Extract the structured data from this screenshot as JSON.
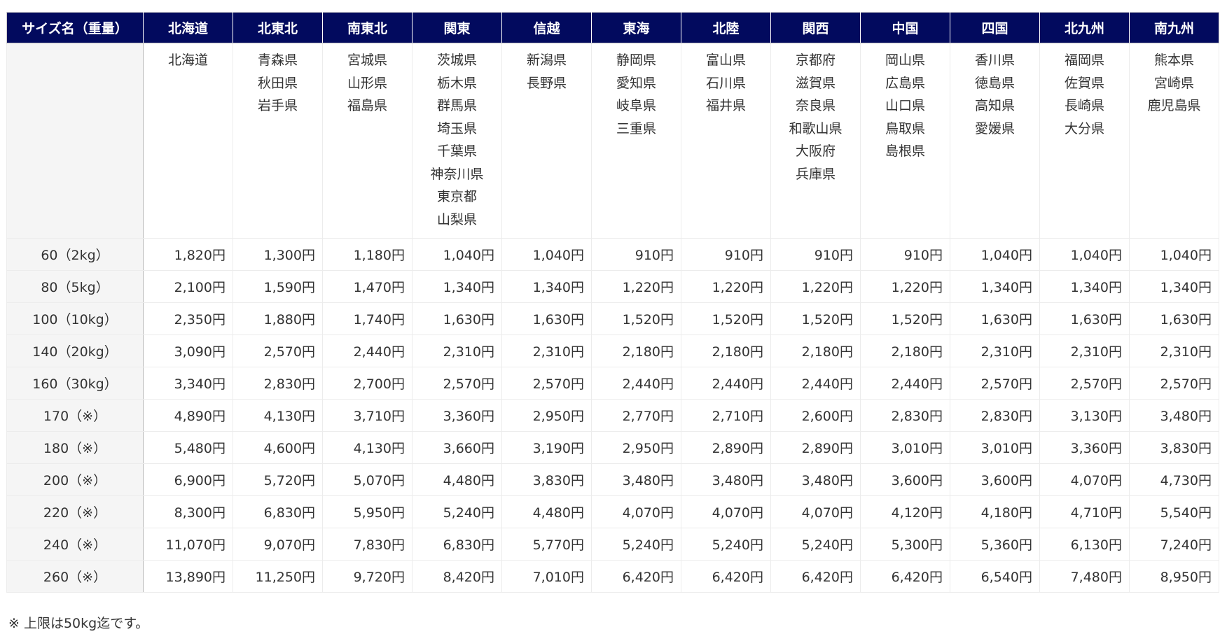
{
  "table": {
    "corner_header": "サイズ名（重量）",
    "regions": [
      {
        "name": "北海道",
        "prefectures": [
          "北海道"
        ]
      },
      {
        "name": "北東北",
        "prefectures": [
          "青森県",
          "秋田県",
          "岩手県"
        ]
      },
      {
        "name": "南東北",
        "prefectures": [
          "宮城県",
          "山形県",
          "福島県"
        ]
      },
      {
        "name": "関東",
        "prefectures": [
          "茨城県",
          "栃木県",
          "群馬県",
          "埼玉県",
          "千葉県",
          "神奈川県",
          "東京都",
          "山梨県"
        ]
      },
      {
        "name": "信越",
        "prefectures": [
          "新潟県",
          "長野県"
        ]
      },
      {
        "name": "東海",
        "prefectures": [
          "静岡県",
          "愛知県",
          "岐阜県",
          "三重県"
        ]
      },
      {
        "name": "北陸",
        "prefectures": [
          "富山県",
          "石川県",
          "福井県"
        ]
      },
      {
        "name": "関西",
        "prefectures": [
          "京都府",
          "滋賀県",
          "奈良県",
          "和歌山県",
          "大阪府",
          "兵庫県"
        ]
      },
      {
        "name": "中国",
        "prefectures": [
          "岡山県",
          "広島県",
          "山口県",
          "鳥取県",
          "島根県"
        ]
      },
      {
        "name": "四国",
        "prefectures": [
          "香川県",
          "徳島県",
          "高知県",
          "愛媛県"
        ]
      },
      {
        "name": "北九州",
        "prefectures": [
          "福岡県",
          "佐賀県",
          "長崎県",
          "大分県"
        ]
      },
      {
        "name": "南九州",
        "prefectures": [
          "熊本県",
          "宮崎県",
          "鹿児島県"
        ]
      }
    ],
    "rows": [
      {
        "size": "60（2kg）",
        "prices": [
          "1,820円",
          "1,300円",
          "1,180円",
          "1,040円",
          "1,040円",
          "910円",
          "910円",
          "910円",
          "910円",
          "1,040円",
          "1,040円",
          "1,040円"
        ]
      },
      {
        "size": "80（5kg）",
        "prices": [
          "2,100円",
          "1,590円",
          "1,470円",
          "1,340円",
          "1,340円",
          "1,220円",
          "1,220円",
          "1,220円",
          "1,220円",
          "1,340円",
          "1,340円",
          "1,340円"
        ]
      },
      {
        "size": "100（10kg）",
        "prices": [
          "2,350円",
          "1,880円",
          "1,740円",
          "1,630円",
          "1,630円",
          "1,520円",
          "1,520円",
          "1,520円",
          "1,520円",
          "1,630円",
          "1,630円",
          "1,630円"
        ]
      },
      {
        "size": "140（20kg）",
        "prices": [
          "3,090円",
          "2,570円",
          "2,440円",
          "2,310円",
          "2,310円",
          "2,180円",
          "2,180円",
          "2,180円",
          "2,180円",
          "2,310円",
          "2,310円",
          "2,310円"
        ]
      },
      {
        "size": "160（30kg）",
        "prices": [
          "3,340円",
          "2,830円",
          "2,700円",
          "2,570円",
          "2,570円",
          "2,440円",
          "2,440円",
          "2,440円",
          "2,440円",
          "2,570円",
          "2,570円",
          "2,570円"
        ]
      },
      {
        "size": "170（※）",
        "prices": [
          "4,890円",
          "4,130円",
          "3,710円",
          "3,360円",
          "2,950円",
          "2,770円",
          "2,710円",
          "2,600円",
          "2,830円",
          "2,830円",
          "3,130円",
          "3,480円"
        ]
      },
      {
        "size": "180（※）",
        "prices": [
          "5,480円",
          "4,600円",
          "4,130円",
          "3,660円",
          "3,190円",
          "2,950円",
          "2,890円",
          "2,890円",
          "3,010円",
          "3,010円",
          "3,360円",
          "3,830円"
        ]
      },
      {
        "size": "200（※）",
        "prices": [
          "6,900円",
          "5,720円",
          "5,070円",
          "4,480円",
          "3,830円",
          "3,480円",
          "3,480円",
          "3,480円",
          "3,600円",
          "3,600円",
          "4,070円",
          "4,730円"
        ]
      },
      {
        "size": "220（※）",
        "prices": [
          "8,300円",
          "6,830円",
          "5,950円",
          "5,240円",
          "4,480円",
          "4,070円",
          "4,070円",
          "4,070円",
          "4,120円",
          "4,180円",
          "4,710円",
          "5,540円"
        ]
      },
      {
        "size": "240（※）",
        "prices": [
          "11,070円",
          "9,070円",
          "7,830円",
          "6,830円",
          "5,770円",
          "5,240円",
          "5,240円",
          "5,240円",
          "5,300円",
          "5,360円",
          "6,130円",
          "7,240円"
        ]
      },
      {
        "size": "260（※）",
        "prices": [
          "13,890円",
          "11,250円",
          "9,720円",
          "8,420円",
          "7,010円",
          "6,420円",
          "6,420円",
          "6,420円",
          "6,420円",
          "6,540円",
          "7,480円",
          "8,950円"
        ]
      }
    ]
  },
  "footnote": "※ 上限は50kg迄です。",
  "colors": {
    "header_bg": "#020a5e",
    "label_bg": "#f5f5f5"
  }
}
